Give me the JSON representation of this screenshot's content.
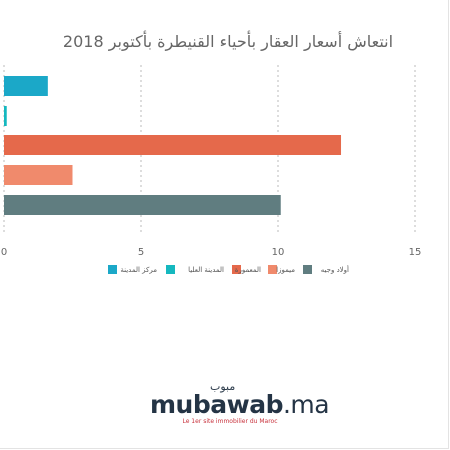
{
  "chart_data": {
    "type": "bar",
    "orientation": "horizontal",
    "title": "انتعاش أسعار العقار بأحياء القنيطرة بأكتوبر 2018",
    "xlabel": "",
    "ylabel": "",
    "xlim": [
      0,
      15
    ],
    "x_ticks": [
      0,
      5,
      10,
      15
    ],
    "grid": "vertical dashed",
    "legend_position": "bottom",
    "series": [
      {
        "name": "مركز المدينة",
        "value": 1.6,
        "color": "#1ba8c8"
      },
      {
        "name": "المدينة العليا",
        "value": 0.1,
        "color": "#15b8bf"
      },
      {
        "name": "المعمورة",
        "value": 12.3,
        "color": "#e5694b"
      },
      {
        "name": "ميموزا",
        "value": 2.5,
        "color": "#f08a6c"
      },
      {
        "name": "أولاد وجيه",
        "value": 10.1,
        "color": "#607d80"
      }
    ]
  },
  "logo": {
    "arabic": "مبوب",
    "word": "mubawab",
    "ext": ".ma",
    "tagline": "Le 1er site immobilier du Maroc"
  }
}
